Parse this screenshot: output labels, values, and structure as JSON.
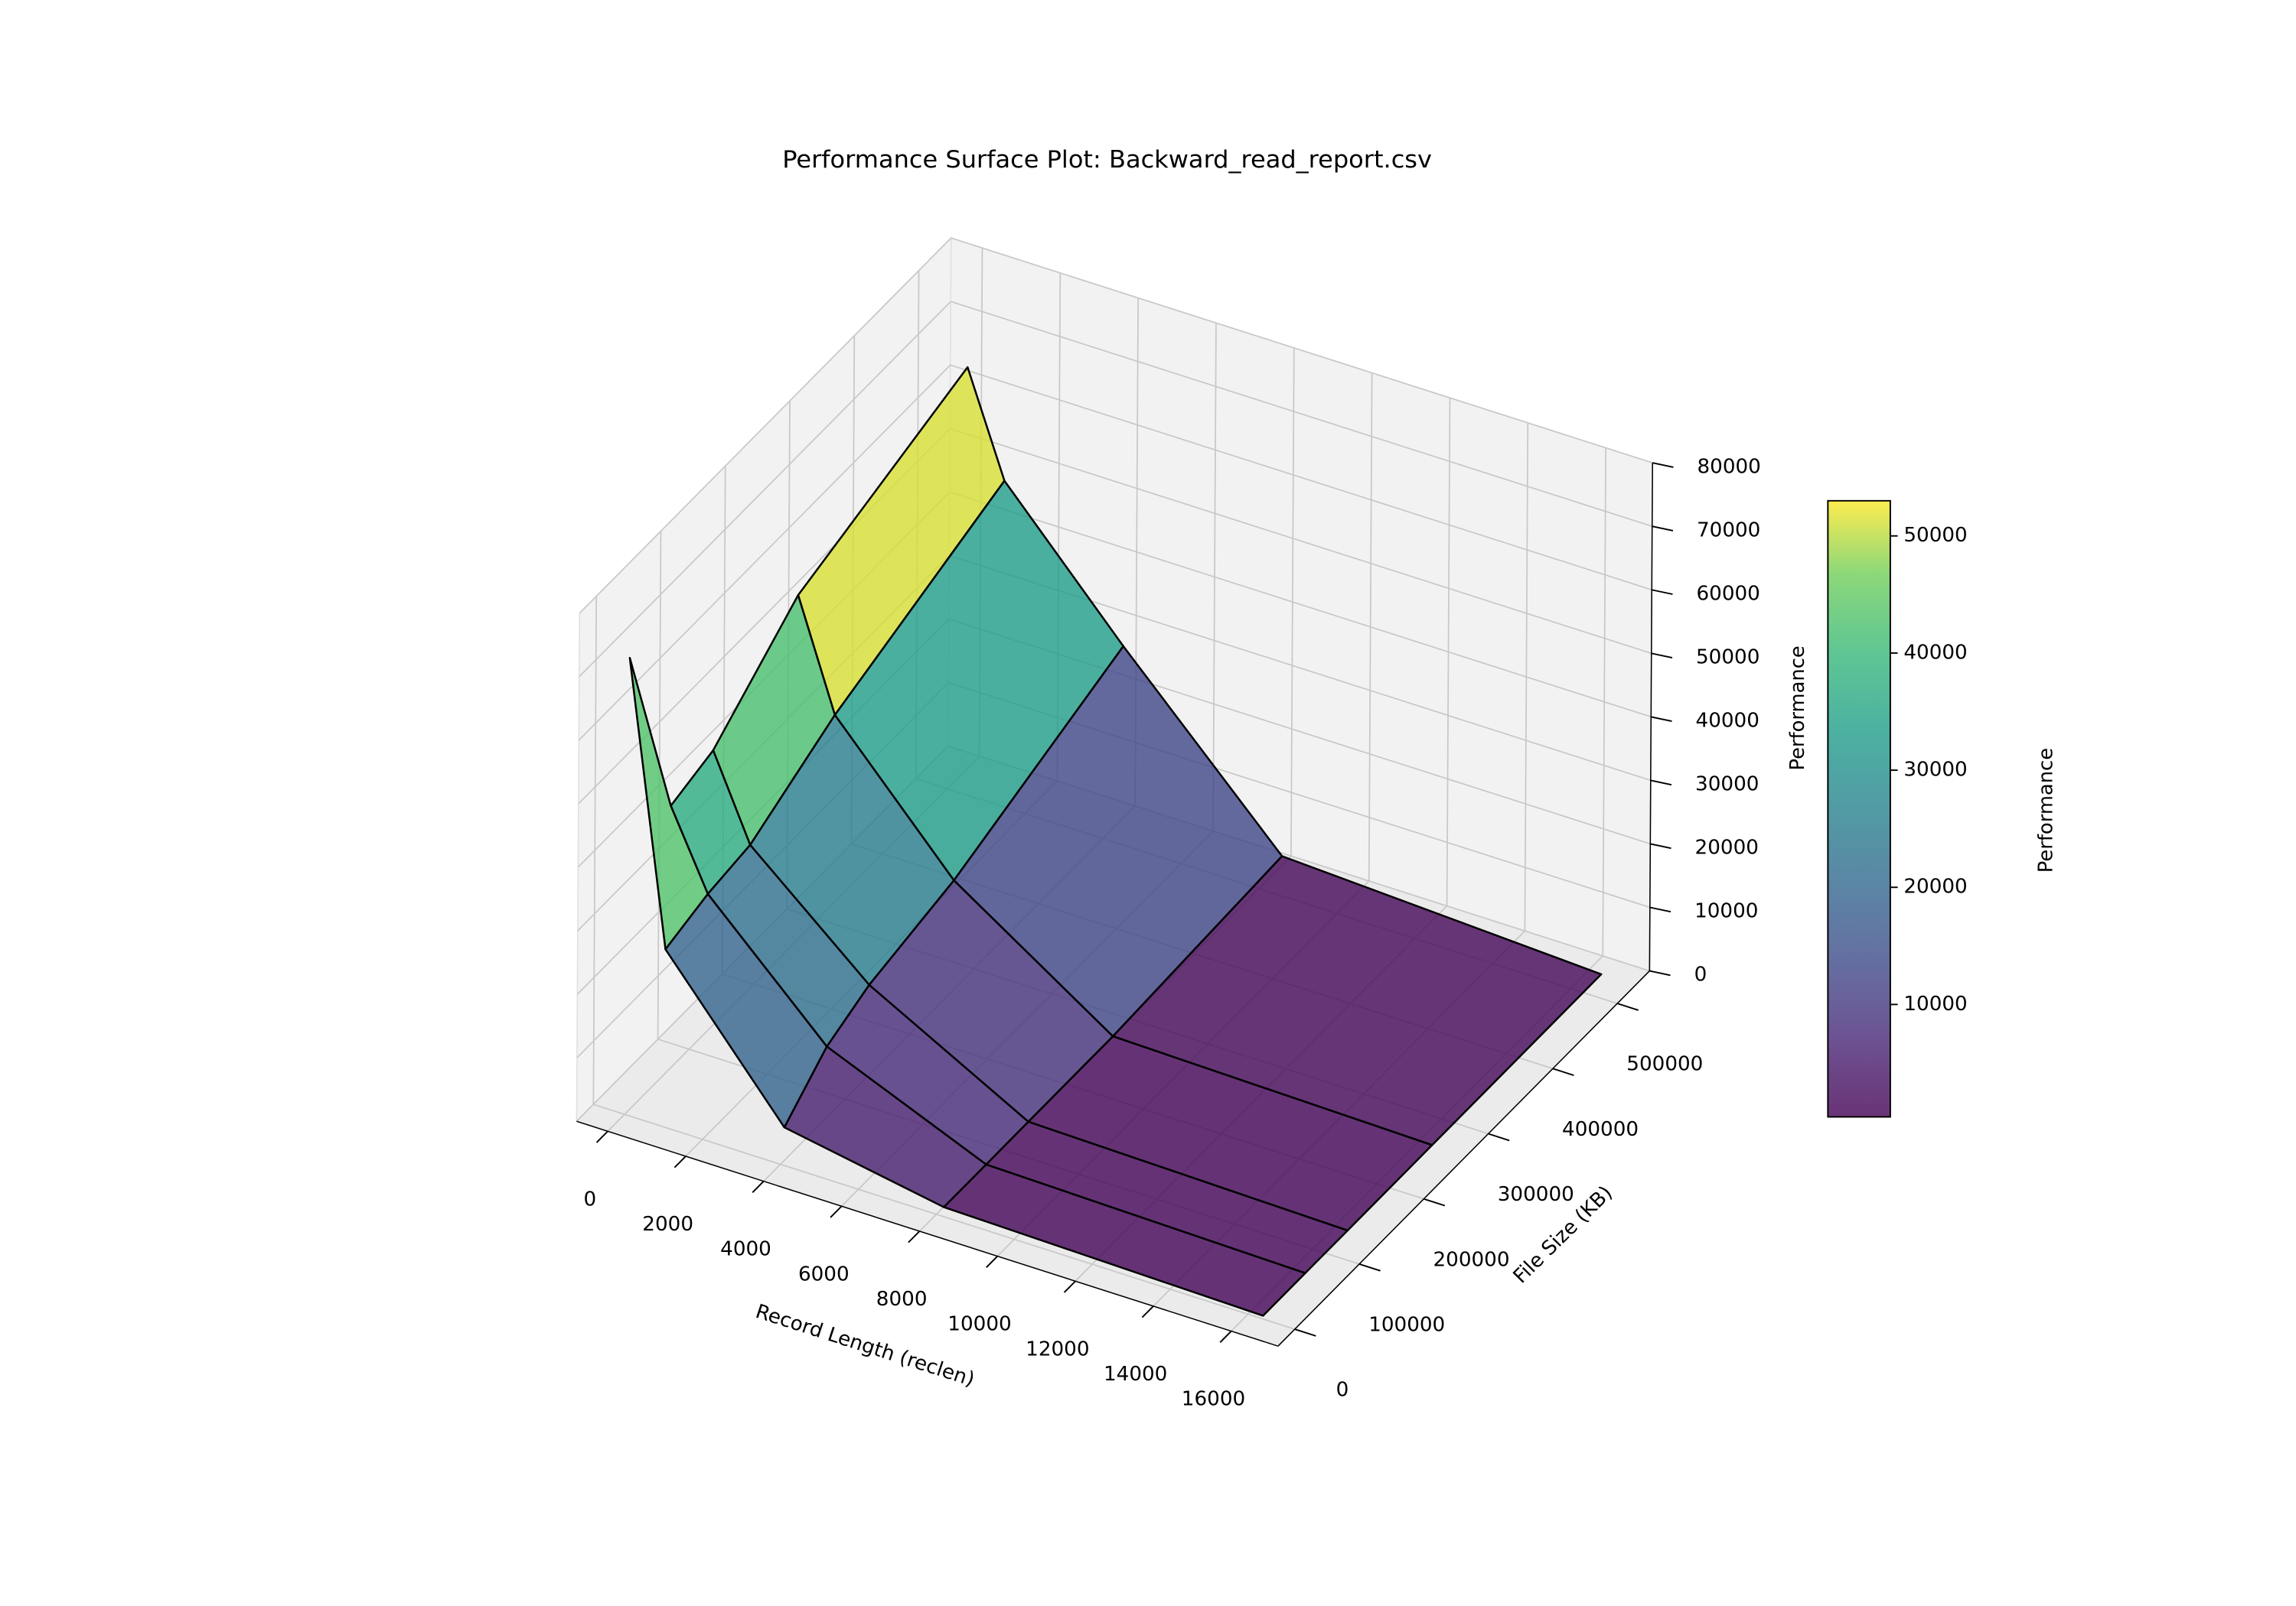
{
  "chart_data": {
    "type": "surface",
    "title": "Performance Surface Plot: Backward_read_report.csv",
    "x_label": "Record Length (reclen)",
    "y_label": "File Size (KB)",
    "z_label": "Performance",
    "x": [
      64,
      1024,
      4096,
      8192,
      16384
    ],
    "y": [
      64,
      65536,
      131072,
      262144,
      524288
    ],
    "z": [
      [
        72000,
        28000,
        6000,
        1500,
        500
      ],
      [
        42000,
        30000,
        12000,
        1500,
        500
      ],
      [
        44000,
        31000,
        15000,
        1500,
        500
      ],
      [
        55000,
        38000,
        18000,
        1500,
        500
      ],
      [
        64000,
        48000,
        28000,
        3000,
        500
      ]
    ],
    "xlim": [
      -800,
      17200
    ],
    "ylim": [
      -26000,
      550000
    ],
    "zlim": [
      0,
      80000
    ],
    "xticks": [
      0,
      2000,
      4000,
      6000,
      8000,
      10000,
      12000,
      14000,
      16000
    ],
    "yticks": [
      0,
      100000,
      200000,
      300000,
      400000,
      500000
    ],
    "zticks": [
      0,
      10000,
      20000,
      30000,
      40000,
      50000,
      60000,
      70000,
      80000
    ],
    "colormap": "viridis",
    "alpha": 0.8,
    "grid": true,
    "colorbar": {
      "label": "Performance",
      "lim": [
        400,
        53000
      ],
      "ticks": [
        10000,
        20000,
        30000,
        40000,
        50000
      ]
    }
  }
}
